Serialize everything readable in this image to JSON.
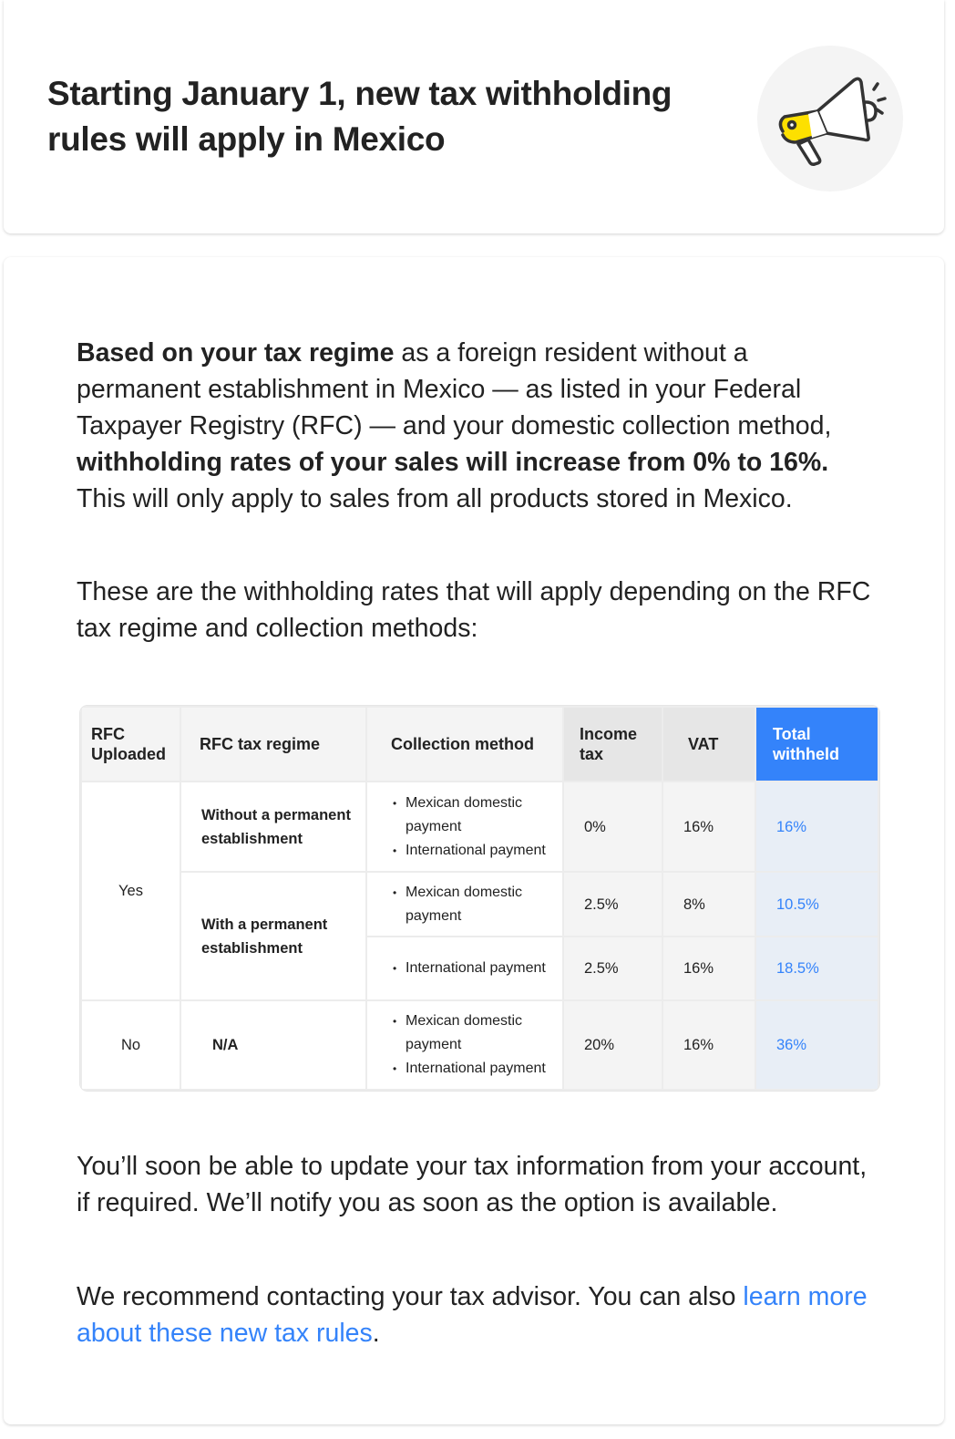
{
  "banner": {
    "title": "Starting January 1, new tax withholding rules will apply in Mexico",
    "icon": "megaphone-icon"
  },
  "body": {
    "p1": {
      "bold1": "Based on your tax regime",
      "text1": " as a foreign resident without a permanent establishment in Mexico — as listed in your Federal Taxpayer Registry (RFC) — and your domestic collection method, ",
      "bold2": "withholding rates of your sales will increase from 0% to 16%.",
      "text2": " This will only apply to sales from all products stored in Mexico."
    },
    "p2": "These are the withholding rates that will apply depending on the RFC tax regime and collection methods:",
    "p3": "You’ll soon be able to update your tax information from your account, if required. We’ll notify you as soon as the option is available.",
    "p4": {
      "text": "We recommend contacting your tax advisor. You can also ",
      "link": "learn more about these new tax rules",
      "end": "."
    }
  },
  "table": {
    "headers": [
      "RFC Uploaded",
      "RFC tax regime",
      "Collection method",
      "Income tax",
      "VAT",
      "Total withheld"
    ],
    "yes": "Yes",
    "no": "No",
    "regime_without": "Without a permanent establishment",
    "regime_with": "With a permanent establishment",
    "regime_na": "N/A",
    "method_domestic": "Mexican domestic payment",
    "method_international": "International payment",
    "rows": [
      {
        "income": "0%",
        "vat": "16%",
        "total": "16%"
      },
      {
        "income": "2.5%",
        "vat": "8%",
        "total": "10.5%"
      },
      {
        "income": "2.5%",
        "vat": "16%",
        "total": "18.5%"
      },
      {
        "income": "20%",
        "vat": "16%",
        "total": "36%"
      }
    ],
    "colors": {
      "accent": "#3483fa",
      "total_bg": "#e8eef6"
    }
  }
}
